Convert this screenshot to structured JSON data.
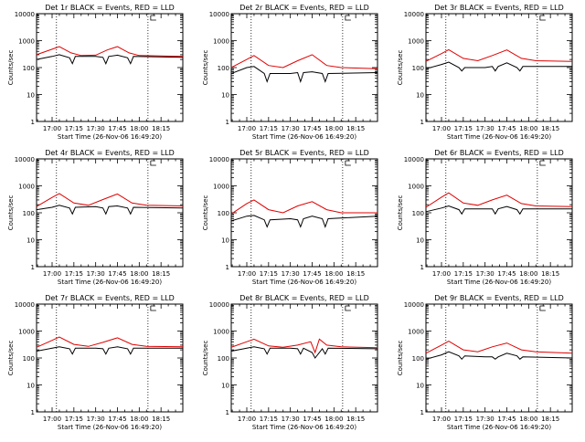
{
  "chart_data": {
    "type": "line",
    "title_suffix": "BLACK = Events, RED = LLD",
    "ylabel": "Counts/sec",
    "xlabel": "Start Time (26-Nov-06 16:49:20)",
    "x_tick_labels": [
      "17:00",
      "17:15",
      "17:30",
      "17:45",
      "18:00",
      "18:15"
    ],
    "x_tick_minutes": [
      0,
      15,
      30,
      45,
      60,
      75
    ],
    "y_tick_labels": [
      "1",
      "10",
      "100",
      "1000",
      "10000"
    ],
    "yscale": "log",
    "ylim": [
      1,
      10000
    ],
    "xlim_minutes": [
      -10.7,
      90
    ],
    "vertical_dotted_lines_minutes": [
      3,
      66
    ],
    "colors": {
      "events": "#000000",
      "lld": "#e00000"
    },
    "panels": [
      {
        "title": "Det 1r",
        "events": [
          {
            "t": -10.7,
            "v": 200
          },
          {
            "t": 0,
            "v": 260
          },
          {
            "t": 5,
            "v": 300
          },
          {
            "t": 12,
            "v": 230
          },
          {
            "t": 14,
            "v": 140
          },
          {
            "t": 16,
            "v": 260
          },
          {
            "t": 30,
            "v": 260
          },
          {
            "t": 35,
            "v": 240
          },
          {
            "t": 37,
            "v": 140
          },
          {
            "t": 39,
            "v": 260
          },
          {
            "t": 45,
            "v": 290
          },
          {
            "t": 52,
            "v": 230
          },
          {
            "t": 54,
            "v": 140
          },
          {
            "t": 56,
            "v": 260
          },
          {
            "t": 90,
            "v": 240
          }
        ],
        "lld": [
          {
            "t": -10.7,
            "v": 300
          },
          {
            "t": 0,
            "v": 480
          },
          {
            "t": 5,
            "v": 600
          },
          {
            "t": 13,
            "v": 350
          },
          {
            "t": 20,
            "v": 280
          },
          {
            "t": 30,
            "v": 290
          },
          {
            "t": 38,
            "v": 450
          },
          {
            "t": 45,
            "v": 600
          },
          {
            "t": 53,
            "v": 350
          },
          {
            "t": 60,
            "v": 280
          },
          {
            "t": 90,
            "v": 260
          }
        ]
      },
      {
        "title": "Det 2r",
        "events": [
          {
            "t": -10.7,
            "v": 60
          },
          {
            "t": 0,
            "v": 100
          },
          {
            "t": 5,
            "v": 110
          },
          {
            "t": 12,
            "v": 60
          },
          {
            "t": 14,
            "v": 30
          },
          {
            "t": 16,
            "v": 60
          },
          {
            "t": 30,
            "v": 60
          },
          {
            "t": 35,
            "v": 65
          },
          {
            "t": 37,
            "v": 30
          },
          {
            "t": 39,
            "v": 65
          },
          {
            "t": 45,
            "v": 70
          },
          {
            "t": 52,
            "v": 60
          },
          {
            "t": 54,
            "v": 30
          },
          {
            "t": 56,
            "v": 60
          },
          {
            "t": 90,
            "v": 65
          }
        ],
        "lld": [
          {
            "t": -10.7,
            "v": 100
          },
          {
            "t": 0,
            "v": 200
          },
          {
            "t": 5,
            "v": 280
          },
          {
            "t": 15,
            "v": 120
          },
          {
            "t": 25,
            "v": 100
          },
          {
            "t": 35,
            "v": 180
          },
          {
            "t": 45,
            "v": 300
          },
          {
            "t": 55,
            "v": 120
          },
          {
            "t": 65,
            "v": 100
          },
          {
            "t": 90,
            "v": 90
          }
        ]
      },
      {
        "title": "Det 3r",
        "events": [
          {
            "t": -10.7,
            "v": 90
          },
          {
            "t": 0,
            "v": 130
          },
          {
            "t": 5,
            "v": 160
          },
          {
            "t": 12,
            "v": 100
          },
          {
            "t": 14,
            "v": 75
          },
          {
            "t": 16,
            "v": 100
          },
          {
            "t": 30,
            "v": 100
          },
          {
            "t": 35,
            "v": 110
          },
          {
            "t": 37,
            "v": 75
          },
          {
            "t": 39,
            "v": 110
          },
          {
            "t": 45,
            "v": 150
          },
          {
            "t": 52,
            "v": 100
          },
          {
            "t": 54,
            "v": 75
          },
          {
            "t": 56,
            "v": 110
          },
          {
            "t": 90,
            "v": 110
          }
        ],
        "lld": [
          {
            "t": -10.7,
            "v": 170
          },
          {
            "t": 0,
            "v": 330
          },
          {
            "t": 5,
            "v": 460
          },
          {
            "t": 15,
            "v": 220
          },
          {
            "t": 25,
            "v": 180
          },
          {
            "t": 35,
            "v": 280
          },
          {
            "t": 45,
            "v": 450
          },
          {
            "t": 55,
            "v": 220
          },
          {
            "t": 65,
            "v": 180
          },
          {
            "t": 90,
            "v": 170
          }
        ]
      },
      {
        "title": "Det 4r",
        "events": [
          {
            "t": -10.7,
            "v": 130
          },
          {
            "t": 0,
            "v": 160
          },
          {
            "t": 5,
            "v": 190
          },
          {
            "t": 12,
            "v": 150
          },
          {
            "t": 14,
            "v": 90
          },
          {
            "t": 16,
            "v": 160
          },
          {
            "t": 30,
            "v": 170
          },
          {
            "t": 35,
            "v": 150
          },
          {
            "t": 37,
            "v": 90
          },
          {
            "t": 39,
            "v": 170
          },
          {
            "t": 45,
            "v": 180
          },
          {
            "t": 52,
            "v": 150
          },
          {
            "t": 54,
            "v": 90
          },
          {
            "t": 56,
            "v": 160
          },
          {
            "t": 90,
            "v": 150
          }
        ],
        "lld": [
          {
            "t": -10.7,
            "v": 170
          },
          {
            "t": 0,
            "v": 370
          },
          {
            "t": 5,
            "v": 520
          },
          {
            "t": 15,
            "v": 230
          },
          {
            "t": 25,
            "v": 190
          },
          {
            "t": 35,
            "v": 310
          },
          {
            "t": 45,
            "v": 500
          },
          {
            "t": 55,
            "v": 230
          },
          {
            "t": 65,
            "v": 190
          },
          {
            "t": 90,
            "v": 180
          }
        ]
      },
      {
        "title": "Det 5r",
        "events": [
          {
            "t": -10.7,
            "v": 50
          },
          {
            "t": 0,
            "v": 75
          },
          {
            "t": 5,
            "v": 80
          },
          {
            "t": 12,
            "v": 55
          },
          {
            "t": 14,
            "v": 30
          },
          {
            "t": 16,
            "v": 55
          },
          {
            "t": 30,
            "v": 60
          },
          {
            "t": 35,
            "v": 55
          },
          {
            "t": 37,
            "v": 30
          },
          {
            "t": 39,
            "v": 60
          },
          {
            "t": 45,
            "v": 75
          },
          {
            "t": 52,
            "v": 60
          },
          {
            "t": 54,
            "v": 30
          },
          {
            "t": 56,
            "v": 60
          },
          {
            "t": 90,
            "v": 75
          }
        ],
        "lld": [
          {
            "t": -10.7,
            "v": 90
          },
          {
            "t": 0,
            "v": 220
          },
          {
            "t": 5,
            "v": 300
          },
          {
            "t": 15,
            "v": 130
          },
          {
            "t": 25,
            "v": 100
          },
          {
            "t": 35,
            "v": 180
          },
          {
            "t": 45,
            "v": 260
          },
          {
            "t": 55,
            "v": 130
          },
          {
            "t": 65,
            "v": 100
          },
          {
            "t": 90,
            "v": 100
          }
        ]
      },
      {
        "title": "Det 6r",
        "events": [
          {
            "t": -10.7,
            "v": 110
          },
          {
            "t": 0,
            "v": 150
          },
          {
            "t": 5,
            "v": 180
          },
          {
            "t": 12,
            "v": 130
          },
          {
            "t": 14,
            "v": 90
          },
          {
            "t": 16,
            "v": 140
          },
          {
            "t": 30,
            "v": 140
          },
          {
            "t": 35,
            "v": 140
          },
          {
            "t": 37,
            "v": 90
          },
          {
            "t": 39,
            "v": 140
          },
          {
            "t": 45,
            "v": 170
          },
          {
            "t": 52,
            "v": 130
          },
          {
            "t": 54,
            "v": 90
          },
          {
            "t": 56,
            "v": 140
          },
          {
            "t": 90,
            "v": 140
          }
        ],
        "lld": [
          {
            "t": -10.7,
            "v": 160
          },
          {
            "t": 0,
            "v": 380
          },
          {
            "t": 5,
            "v": 550
          },
          {
            "t": 15,
            "v": 230
          },
          {
            "t": 25,
            "v": 190
          },
          {
            "t": 35,
            "v": 300
          },
          {
            "t": 45,
            "v": 450
          },
          {
            "t": 55,
            "v": 220
          },
          {
            "t": 65,
            "v": 180
          },
          {
            "t": 90,
            "v": 170
          }
        ]
      },
      {
        "title": "Det 7r",
        "events": [
          {
            "t": -10.7,
            "v": 180
          },
          {
            "t": 0,
            "v": 230
          },
          {
            "t": 5,
            "v": 260
          },
          {
            "t": 12,
            "v": 220
          },
          {
            "t": 14,
            "v": 140
          },
          {
            "t": 16,
            "v": 230
          },
          {
            "t": 30,
            "v": 230
          },
          {
            "t": 35,
            "v": 220
          },
          {
            "t": 37,
            "v": 140
          },
          {
            "t": 39,
            "v": 230
          },
          {
            "t": 45,
            "v": 260
          },
          {
            "t": 52,
            "v": 220
          },
          {
            "t": 54,
            "v": 140
          },
          {
            "t": 56,
            "v": 230
          },
          {
            "t": 90,
            "v": 230
          }
        ],
        "lld": [
          {
            "t": -10.7,
            "v": 250
          },
          {
            "t": 0,
            "v": 450
          },
          {
            "t": 5,
            "v": 600
          },
          {
            "t": 15,
            "v": 320
          },
          {
            "t": 25,
            "v": 270
          },
          {
            "t": 35,
            "v": 380
          },
          {
            "t": 45,
            "v": 560
          },
          {
            "t": 55,
            "v": 320
          },
          {
            "t": 65,
            "v": 270
          },
          {
            "t": 90,
            "v": 260
          }
        ]
      },
      {
        "title": "Det 8r",
        "events": [
          {
            "t": -10.7,
            "v": 180
          },
          {
            "t": 0,
            "v": 230
          },
          {
            "t": 5,
            "v": 260
          },
          {
            "t": 12,
            "v": 220
          },
          {
            "t": 14,
            "v": 140
          },
          {
            "t": 16,
            "v": 230
          },
          {
            "t": 30,
            "v": 230
          },
          {
            "t": 35,
            "v": 220
          },
          {
            "t": 37,
            "v": 140
          },
          {
            "t": 39,
            "v": 230
          },
          {
            "t": 45,
            "v": 160
          },
          {
            "t": 47,
            "v": 100
          },
          {
            "t": 52,
            "v": 220
          },
          {
            "t": 54,
            "v": 140
          },
          {
            "t": 56,
            "v": 230
          },
          {
            "t": 90,
            "v": 220
          }
        ],
        "lld": [
          {
            "t": -10.7,
            "v": 250
          },
          {
            "t": 0,
            "v": 400
          },
          {
            "t": 5,
            "v": 500
          },
          {
            "t": 15,
            "v": 280
          },
          {
            "t": 25,
            "v": 250
          },
          {
            "t": 35,
            "v": 300
          },
          {
            "t": 44,
            "v": 400
          },
          {
            "t": 47,
            "v": 160
          },
          {
            "t": 50,
            "v": 500
          },
          {
            "t": 55,
            "v": 300
          },
          {
            "t": 65,
            "v": 260
          },
          {
            "t": 90,
            "v": 240
          }
        ]
      },
      {
        "title": "Det 9r",
        "events": [
          {
            "t": -10.7,
            "v": 90
          },
          {
            "t": 0,
            "v": 130
          },
          {
            "t": 5,
            "v": 170
          },
          {
            "t": 12,
            "v": 120
          },
          {
            "t": 14,
            "v": 90
          },
          {
            "t": 16,
            "v": 120
          },
          {
            "t": 30,
            "v": 110
          },
          {
            "t": 35,
            "v": 110
          },
          {
            "t": 37,
            "v": 90
          },
          {
            "t": 39,
            "v": 110
          },
          {
            "t": 45,
            "v": 150
          },
          {
            "t": 52,
            "v": 120
          },
          {
            "t": 54,
            "v": 90
          },
          {
            "t": 56,
            "v": 110
          },
          {
            "t": 90,
            "v": 100
          }
        ],
        "lld": [
          {
            "t": -10.7,
            "v": 150
          },
          {
            "t": 0,
            "v": 300
          },
          {
            "t": 5,
            "v": 420
          },
          {
            "t": 15,
            "v": 200
          },
          {
            "t": 25,
            "v": 170
          },
          {
            "t": 35,
            "v": 260
          },
          {
            "t": 45,
            "v": 360
          },
          {
            "t": 55,
            "v": 200
          },
          {
            "t": 65,
            "v": 170
          },
          {
            "t": 90,
            "v": 150
          }
        ]
      }
    ]
  }
}
